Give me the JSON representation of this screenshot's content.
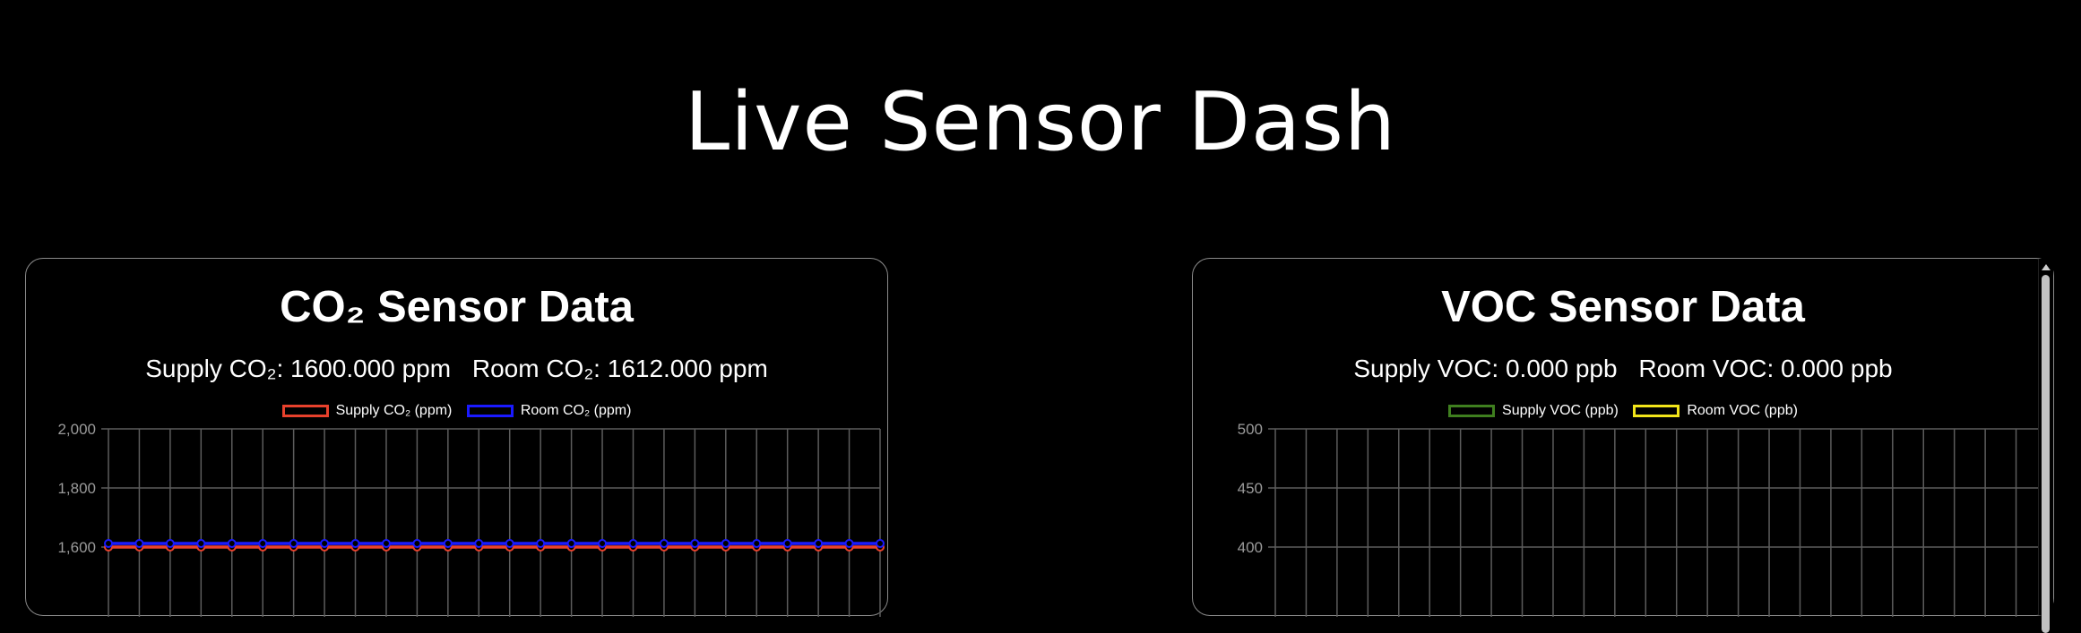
{
  "page": {
    "title": "Live Sensor Dash"
  },
  "co2": {
    "title": "CO₂ Sensor Data",
    "supply_reading": "Supply CO₂: 1600.000 ppm",
    "room_reading": "Room CO₂: 1612.000 ppm"
  },
  "voc": {
    "title": "VOC Sensor Data",
    "supply_reading": "Supply VOC: 0.000 ppb",
    "room_reading": "Room VOC: 0.000 ppb"
  },
  "chart_data": [
    {
      "type": "line",
      "title": "",
      "ylim": [
        1600,
        2000
      ],
      "yticks": [
        "2,000",
        "1,800",
        "1,600"
      ],
      "x_count": 26,
      "grid": true,
      "legend_position": "top",
      "series": [
        {
          "name": "Supply CO₂ (ppm)",
          "color": "#e8412c",
          "values": [
            1600,
            1600,
            1600,
            1600,
            1600,
            1600,
            1600,
            1600,
            1600,
            1600,
            1600,
            1600,
            1600,
            1600,
            1600,
            1600,
            1600,
            1600,
            1600,
            1600,
            1600,
            1600,
            1600,
            1600,
            1600,
            1600
          ]
        },
        {
          "name": "Room CO₂ (ppm)",
          "color": "#1a1aff",
          "values": [
            1612,
            1612,
            1612,
            1612,
            1612,
            1612,
            1612,
            1612,
            1612,
            1612,
            1612,
            1612,
            1612,
            1612,
            1612,
            1612,
            1612,
            1612,
            1612,
            1612,
            1612,
            1612,
            1612,
            1612,
            1612,
            1612
          ]
        }
      ]
    },
    {
      "type": "line",
      "title": "",
      "ylim": [
        400,
        500
      ],
      "yticks": [
        "500",
        "450",
        "400"
      ],
      "x_count": 26,
      "grid": true,
      "legend_position": "top",
      "series": [
        {
          "name": "Supply VOC (ppb)",
          "color": "#3f7f1f",
          "values": []
        },
        {
          "name": "Room VOC (ppb)",
          "color": "#f2e51a",
          "values": []
        }
      ]
    }
  ]
}
